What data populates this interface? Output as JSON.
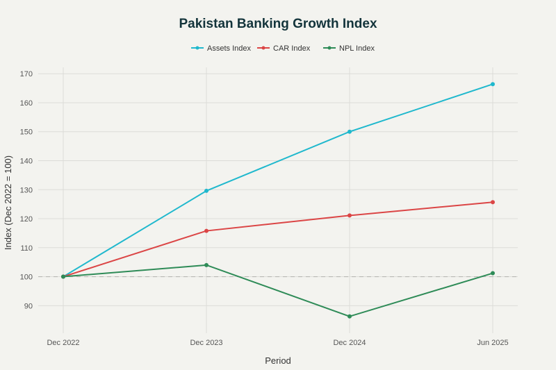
{
  "chart_data": {
    "type": "line",
    "title": "Pakistan Banking Growth Index",
    "xlabel": "Period",
    "ylabel": "Index (Dec 2022 = 100)",
    "categories": [
      "Dec 2022",
      "Dec 2023",
      "Dec 2024",
      "Jun 2025"
    ],
    "ylim": [
      80.5,
      172.2
    ],
    "yticks": [
      90,
      100,
      110,
      120,
      130,
      140,
      150,
      160,
      170
    ],
    "grid": true,
    "legend": "top",
    "reference_line": 100,
    "series": [
      {
        "name": "Assets Index",
        "color": "#1fb8cd",
        "values": [
          100,
          129.6,
          150.0,
          166.4
        ]
      },
      {
        "name": "CAR Index",
        "color": "#db4545",
        "values": [
          100,
          115.8,
          121.1,
          125.7
        ]
      },
      {
        "name": "NPL Index",
        "color": "#2e8b57",
        "values": [
          100,
          104.0,
          86.3,
          101.2
        ]
      }
    ]
  }
}
